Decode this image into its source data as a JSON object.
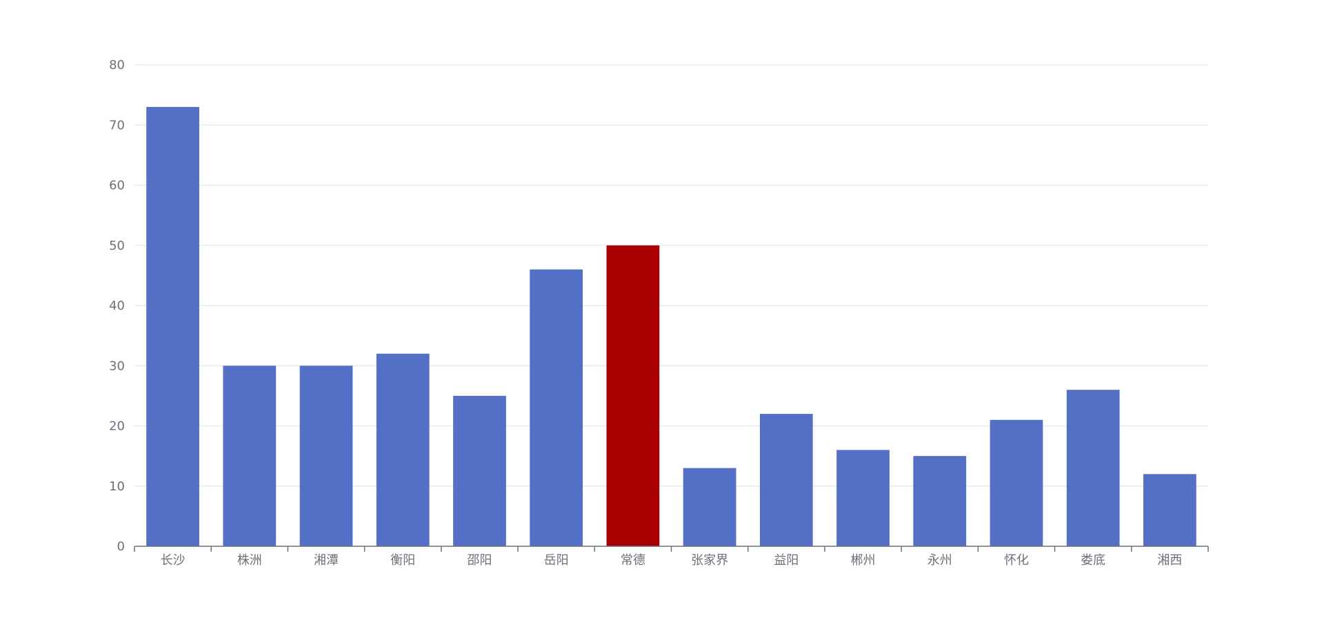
{
  "chart_data": {
    "type": "bar",
    "title": "",
    "xlabel": "",
    "ylabel": "",
    "categories": [
      "长沙",
      "株洲",
      "湘潭",
      "衡阳",
      "邵阳",
      "岳阳",
      "常德",
      "张家界",
      "益阳",
      "郴州",
      "永州",
      "怀化",
      "娄底",
      "湘西"
    ],
    "values": [
      73,
      30,
      30,
      32,
      25,
      46,
      50,
      13,
      22,
      16,
      15,
      21,
      26,
      12
    ],
    "ylim": [
      0,
      80
    ],
    "yticks": [
      0,
      10,
      20,
      30,
      40,
      50,
      60,
      70,
      80
    ],
    "highlight_index": 6,
    "grid": true,
    "legend": "none",
    "colors": {
      "bar": "#5470c6",
      "highlight": "#a90000",
      "grid": "#e0e6f1",
      "axis": "#6e7079",
      "text": "#6e7079"
    }
  }
}
